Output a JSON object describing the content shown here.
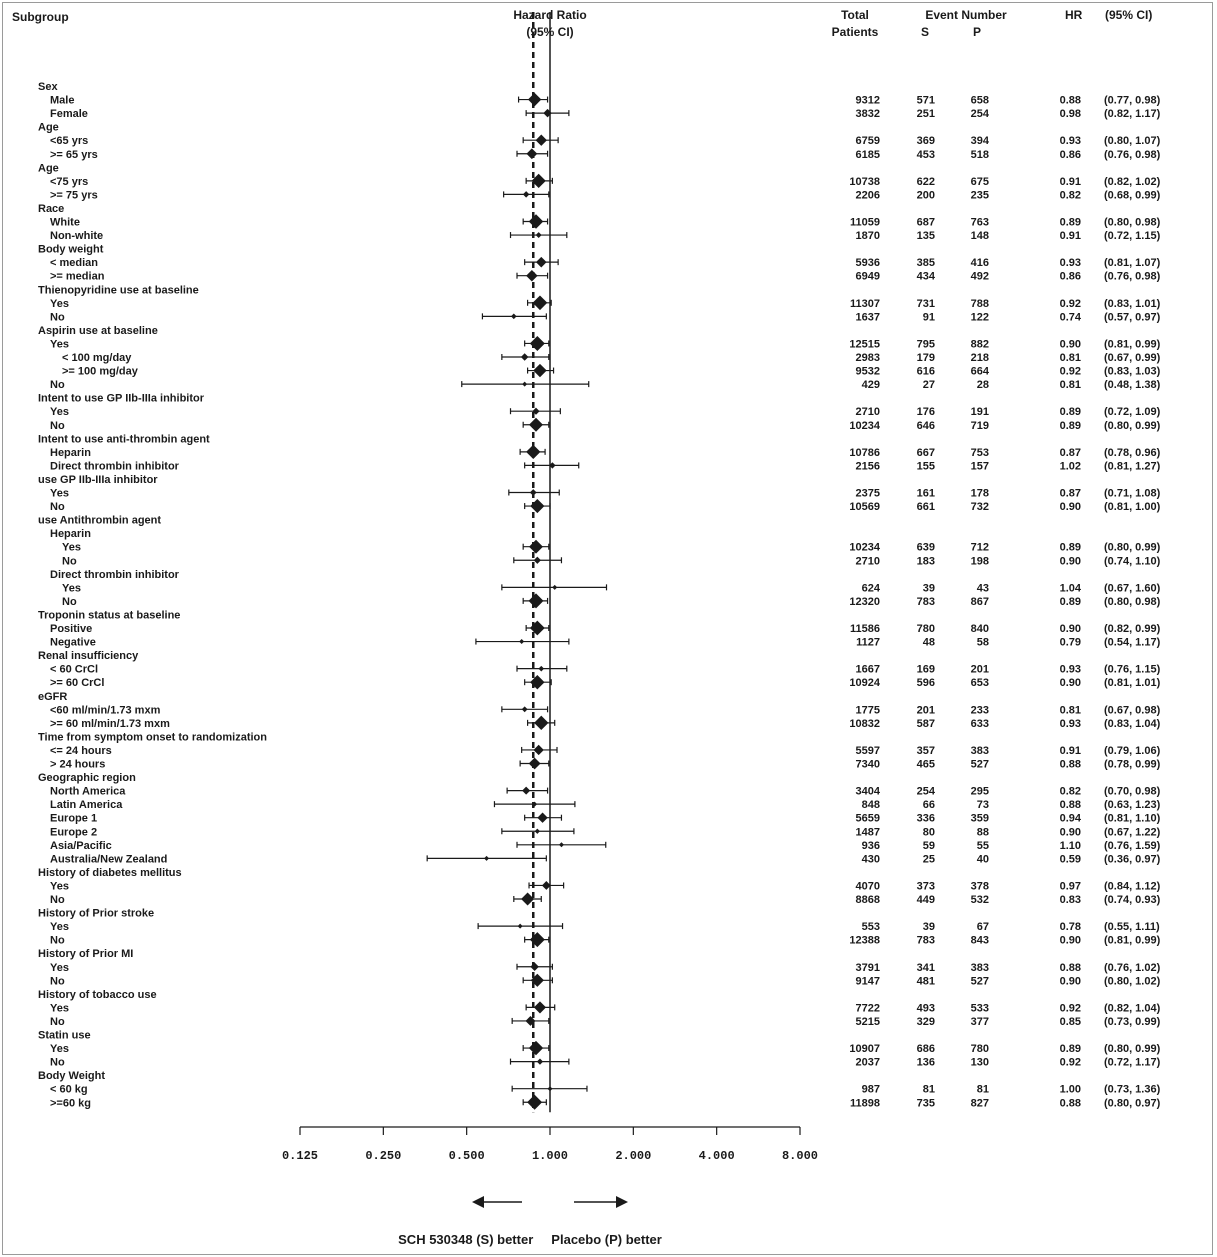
{
  "headers": {
    "subgroup": "Subgroup",
    "hr_title": "Hazard Ratio",
    "hr_ci": "(95% CI)",
    "total": "Total",
    "patients": "Patients",
    "event_number": "Event Number",
    "s": "S",
    "p": "P",
    "hr_col": "HR",
    "ci_col": "(95% CI)"
  },
  "footer": "SCH 530348 (S) better     Placebo (P) better",
  "chart_data": {
    "type": "forest",
    "xscale": "log2",
    "xlim": [
      0.125,
      8
    ],
    "ticks": [
      0.125,
      0.25,
      0.5,
      1,
      2,
      4,
      8
    ],
    "tick_labels": [
      "0.125",
      "0.250",
      "0.500",
      "1.000",
      "2.000",
      "4.000",
      "8.000"
    ],
    "reference_line": 1.0,
    "overall_line": 0.87,
    "rows": [
      {
        "label": "Sex",
        "level": 0
      },
      {
        "label": "Male",
        "level": 1,
        "total": "9312",
        "s": "571",
        "p": "658",
        "hr": 0.88,
        "lo": 0.77,
        "hi": 0.98,
        "hr_text": "0.88",
        "ci_text": "(0.77, 0.98)"
      },
      {
        "label": "Female",
        "level": 1,
        "total": "3832",
        "s": "251",
        "p": "254",
        "hr": 0.98,
        "lo": 0.82,
        "hi": 1.17,
        "hr_text": "0.98",
        "ci_text": "(0.82, 1.17)"
      },
      {
        "label": "Age",
        "level": 0
      },
      {
        "label": "<65 yrs",
        "level": 1,
        "total": "6759",
        "s": "369",
        "p": "394",
        "hr": 0.93,
        "lo": 0.8,
        "hi": 1.07,
        "hr_text": "0.93",
        "ci_text": "(0.80, 1.07)"
      },
      {
        "label": ">= 65 yrs",
        "level": 1,
        "total": "6185",
        "s": "453",
        "p": "518",
        "hr": 0.86,
        "lo": 0.76,
        "hi": 0.98,
        "hr_text": "0.86",
        "ci_text": "(0.76, 0.98)"
      },
      {
        "label": "Age",
        "level": 0
      },
      {
        "label": "<75 yrs",
        "level": 1,
        "total": "10738",
        "s": "622",
        "p": "675",
        "hr": 0.91,
        "lo": 0.82,
        "hi": 1.02,
        "hr_text": "0.91",
        "ci_text": "(0.82, 1.02)"
      },
      {
        "label": ">= 75 yrs",
        "level": 1,
        "total": "2206",
        "s": "200",
        "p": "235",
        "hr": 0.82,
        "lo": 0.68,
        "hi": 0.99,
        "hr_text": "0.82",
        "ci_text": "(0.68, 0.99)"
      },
      {
        "label": "Race",
        "level": 0
      },
      {
        "label": "White",
        "level": 1,
        "total": "11059",
        "s": "687",
        "p": "763",
        "hr": 0.89,
        "lo": 0.8,
        "hi": 0.98,
        "hr_text": "0.89",
        "ci_text": "(0.80, 0.98)"
      },
      {
        "label": "Non-white",
        "level": 1,
        "total": "1870",
        "s": "135",
        "p": "148",
        "hr": 0.91,
        "lo": 0.72,
        "hi": 1.15,
        "hr_text": "0.91",
        "ci_text": "(0.72, 1.15)"
      },
      {
        "label": "Body weight",
        "level": 0
      },
      {
        "label": "< median",
        "level": 1,
        "total": "5936",
        "s": "385",
        "p": "416",
        "hr": 0.93,
        "lo": 0.81,
        "hi": 1.07,
        "hr_text": "0.93",
        "ci_text": "(0.81, 1.07)"
      },
      {
        "label": ">= median",
        "level": 1,
        "total": "6949",
        "s": "434",
        "p": "492",
        "hr": 0.86,
        "lo": 0.76,
        "hi": 0.98,
        "hr_text": "0.86",
        "ci_text": "(0.76, 0.98)"
      },
      {
        "label": "Thienopyridine use at baseline",
        "level": 0
      },
      {
        "label": "Yes",
        "level": 1,
        "total": "11307",
        "s": "731",
        "p": "788",
        "hr": 0.92,
        "lo": 0.83,
        "hi": 1.01,
        "hr_text": "0.92",
        "ci_text": "(0.83, 1.01)"
      },
      {
        "label": "No",
        "level": 1,
        "total": "1637",
        "s": "91",
        "p": "122",
        "hr": 0.74,
        "lo": 0.57,
        "hi": 0.97,
        "hr_text": "0.74",
        "ci_text": "(0.57, 0.97)"
      },
      {
        "label": "Aspirin use at baseline",
        "level": 0
      },
      {
        "label": "Yes",
        "level": 1,
        "total": "12515",
        "s": "795",
        "p": "882",
        "hr": 0.9,
        "lo": 0.81,
        "hi": 0.99,
        "hr_text": "0.90",
        "ci_text": "(0.81, 0.99)"
      },
      {
        "label": "< 100 mg/day",
        "level": 2,
        "total": "2983",
        "s": "179",
        "p": "218",
        "hr": 0.81,
        "lo": 0.67,
        "hi": 0.99,
        "hr_text": "0.81",
        "ci_text": "(0.67, 0.99)"
      },
      {
        "label": ">= 100 mg/day",
        "level": 2,
        "total": "9532",
        "s": "616",
        "p": "664",
        "hr": 0.92,
        "lo": 0.83,
        "hi": 1.03,
        "hr_text": "0.92",
        "ci_text": "(0.83, 1.03)"
      },
      {
        "label": "No",
        "level": 1,
        "total": "429",
        "s": "27",
        "p": "28",
        "hr": 0.81,
        "lo": 0.48,
        "hi": 1.38,
        "hr_text": "0.81",
        "ci_text": "(0.48, 1.38)"
      },
      {
        "label": "Intent to use GP IIb-IIIa inhibitor",
        "level": 0
      },
      {
        "label": "Yes",
        "level": 1,
        "total": "2710",
        "s": "176",
        "p": "191",
        "hr": 0.89,
        "lo": 0.72,
        "hi": 1.09,
        "hr_text": "0.89",
        "ci_text": "(0.72, 1.09)"
      },
      {
        "label": "No",
        "level": 1,
        "total": "10234",
        "s": "646",
        "p": "719",
        "hr": 0.89,
        "lo": 0.8,
        "hi": 0.99,
        "hr_text": "0.89",
        "ci_text": "(0.80, 0.99)"
      },
      {
        "label": "Intent to use anti-thrombin agent",
        "level": 0
      },
      {
        "label": "Heparin",
        "level": 1,
        "total": "10786",
        "s": "667",
        "p": "753",
        "hr": 0.87,
        "lo": 0.78,
        "hi": 0.96,
        "hr_text": "0.87",
        "ci_text": "(0.78, 0.96)"
      },
      {
        "label": "Direct thrombin inhibitor",
        "level": 1,
        "total": "2156",
        "s": "155",
        "p": "157",
        "hr": 1.02,
        "lo": 0.81,
        "hi": 1.27,
        "hr_text": "1.02",
        "ci_text": "(0.81, 1.27)"
      },
      {
        "label": "use GP IIb-IIIa inhibitor",
        "level": 0
      },
      {
        "label": "Yes",
        "level": 1,
        "total": "2375",
        "s": "161",
        "p": "178",
        "hr": 0.87,
        "lo": 0.71,
        "hi": 1.08,
        "hr_text": "0.87",
        "ci_text": "(0.71, 1.08)"
      },
      {
        "label": "No",
        "level": 1,
        "total": "10569",
        "s": "661",
        "p": "732",
        "hr": 0.9,
        "lo": 0.81,
        "hi": 1.0,
        "hr_text": "0.90",
        "ci_text": "(0.81, 1.00)"
      },
      {
        "label": "use Antithrombin agent",
        "level": 0
      },
      {
        "label": "Heparin",
        "level": 1
      },
      {
        "label": "Yes",
        "level": 2,
        "total": "10234",
        "s": "639",
        "p": "712",
        "hr": 0.89,
        "lo": 0.8,
        "hi": 0.99,
        "hr_text": "0.89",
        "ci_text": "(0.80, 0.99)"
      },
      {
        "label": "No",
        "level": 2,
        "total": "2710",
        "s": "183",
        "p": "198",
        "hr": 0.9,
        "lo": 0.74,
        "hi": 1.1,
        "hr_text": "0.90",
        "ci_text": "(0.74, 1.10)"
      },
      {
        "label": "Direct thrombin inhibitor",
        "level": 1
      },
      {
        "label": "Yes",
        "level": 2,
        "total": "624",
        "s": "39",
        "p": "43",
        "hr": 1.04,
        "lo": 0.67,
        "hi": 1.6,
        "hr_text": "1.04",
        "ci_text": "(0.67, 1.60)"
      },
      {
        "label": "No",
        "level": 2,
        "total": "12320",
        "s": "783",
        "p": "867",
        "hr": 0.89,
        "lo": 0.8,
        "hi": 0.98,
        "hr_text": "0.89",
        "ci_text": "(0.80, 0.98)"
      },
      {
        "label": "Troponin status at baseline",
        "level": 0
      },
      {
        "label": "Positive",
        "level": 1,
        "total": "11586",
        "s": "780",
        "p": "840",
        "hr": 0.9,
        "lo": 0.82,
        "hi": 0.99,
        "hr_text": "0.90",
        "ci_text": "(0.82, 0.99)"
      },
      {
        "label": "Negative",
        "level": 1,
        "total": "1127",
        "s": "48",
        "p": "58",
        "hr": 0.79,
        "lo": 0.54,
        "hi": 1.17,
        "hr_text": "0.79",
        "ci_text": "(0.54, 1.17)"
      },
      {
        "label": "Renal insufficiency",
        "level": 0
      },
      {
        "label": "< 60 CrCl",
        "level": 1,
        "total": "1667",
        "s": "169",
        "p": "201",
        "hr": 0.93,
        "lo": 0.76,
        "hi": 1.15,
        "hr_text": "0.93",
        "ci_text": "(0.76, 1.15)"
      },
      {
        "label": ">= 60 CrCl",
        "level": 1,
        "total": "10924",
        "s": "596",
        "p": "653",
        "hr": 0.9,
        "lo": 0.81,
        "hi": 1.01,
        "hr_text": "0.90",
        "ci_text": "(0.81, 1.01)"
      },
      {
        "label": "eGFR",
        "level": 0
      },
      {
        "label": "<60 ml/min/1.73 mxm",
        "level": 1,
        "total": "1775",
        "s": "201",
        "p": "233",
        "hr": 0.81,
        "lo": 0.67,
        "hi": 0.98,
        "hr_text": "0.81",
        "ci_text": "(0.67, 0.98)"
      },
      {
        "label": ">= 60 ml/min/1.73 mxm",
        "level": 1,
        "total": "10832",
        "s": "587",
        "p": "633",
        "hr": 0.93,
        "lo": 0.83,
        "hi": 1.04,
        "hr_text": "0.93",
        "ci_text": "(0.83, 1.04)"
      },
      {
        "label": "Time from symptom onset to randomization",
        "level": 0
      },
      {
        "label": "<= 24 hours",
        "level": 1,
        "total": "5597",
        "s": "357",
        "p": "383",
        "hr": 0.91,
        "lo": 0.79,
        "hi": 1.06,
        "hr_text": "0.91",
        "ci_text": "(0.79, 1.06)"
      },
      {
        "label": "> 24 hours",
        "level": 1,
        "total": "7340",
        "s": "465",
        "p": "527",
        "hr": 0.88,
        "lo": 0.78,
        "hi": 0.99,
        "hr_text": "0.88",
        "ci_text": "(0.78, 0.99)"
      },
      {
        "label": "Geographic region",
        "level": 0
      },
      {
        "label": "North America",
        "level": 1,
        "total": "3404",
        "s": "254",
        "p": "295",
        "hr": 0.82,
        "lo": 0.7,
        "hi": 0.98,
        "hr_text": "0.82",
        "ci_text": "(0.70, 0.98)"
      },
      {
        "label": "Latin America",
        "level": 1,
        "total": "848",
        "s": "66",
        "p": "73",
        "hr": 0.88,
        "lo": 0.63,
        "hi": 1.23,
        "hr_text": "0.88",
        "ci_text": "(0.63, 1.23)"
      },
      {
        "label": "Europe 1",
        "level": 1,
        "total": "5659",
        "s": "336",
        "p": "359",
        "hr": 0.94,
        "lo": 0.81,
        "hi": 1.1,
        "hr_text": "0.94",
        "ci_text": "(0.81, 1.10)"
      },
      {
        "label": "Europe 2",
        "level": 1,
        "total": "1487",
        "s": "80",
        "p": "88",
        "hr": 0.9,
        "lo": 0.67,
        "hi": 1.22,
        "hr_text": "0.90",
        "ci_text": "(0.67, 1.22)"
      },
      {
        "label": "Asia/Pacific",
        "level": 1,
        "total": "936",
        "s": "59",
        "p": "55",
        "hr": 1.1,
        "lo": 0.76,
        "hi": 1.59,
        "hr_text": "1.10",
        "ci_text": "(0.76, 1.59)"
      },
      {
        "label": "Australia/New Zealand",
        "level": 1,
        "total": "430",
        "s": "25",
        "p": "40",
        "hr": 0.59,
        "lo": 0.36,
        "hi": 0.97,
        "hr_text": "0.59",
        "ci_text": "(0.36, 0.97)"
      },
      {
        "label": "History of diabetes mellitus",
        "level": 0
      },
      {
        "label": "Yes",
        "level": 1,
        "total": "4070",
        "s": "373",
        "p": "378",
        "hr": 0.97,
        "lo": 0.84,
        "hi": 1.12,
        "hr_text": "0.97",
        "ci_text": "(0.84, 1.12)"
      },
      {
        "label": "No",
        "level": 1,
        "total": "8868",
        "s": "449",
        "p": "532",
        "hr": 0.83,
        "lo": 0.74,
        "hi": 0.93,
        "hr_text": "0.83",
        "ci_text": "(0.74, 0.93)"
      },
      {
        "label": "History of Prior stroke",
        "level": 0
      },
      {
        "label": "Yes",
        "level": 1,
        "total": "553",
        "s": "39",
        "p": "67",
        "hr": 0.78,
        "lo": 0.55,
        "hi": 1.11,
        "hr_text": "0.78",
        "ci_text": "(0.55, 1.11)"
      },
      {
        "label": "No",
        "level": 1,
        "total": "12388",
        "s": "783",
        "p": "843",
        "hr": 0.9,
        "lo": 0.81,
        "hi": 0.99,
        "hr_text": "0.90",
        "ci_text": "(0.81, 0.99)"
      },
      {
        "label": "History of Prior MI",
        "level": 0
      },
      {
        "label": "Yes",
        "level": 1,
        "total": "3791",
        "s": "341",
        "p": "383",
        "hr": 0.88,
        "lo": 0.76,
        "hi": 1.02,
        "hr_text": "0.88",
        "ci_text": "(0.76, 1.02)"
      },
      {
        "label": "No",
        "level": 1,
        "total": "9147",
        "s": "481",
        "p": "527",
        "hr": 0.9,
        "lo": 0.8,
        "hi": 1.02,
        "hr_text": "0.90",
        "ci_text": "(0.80, 1.02)"
      },
      {
        "label": "History of tobacco use",
        "level": 0
      },
      {
        "label": "Yes",
        "level": 1,
        "total": "7722",
        "s": "493",
        "p": "533",
        "hr": 0.92,
        "lo": 0.82,
        "hi": 1.04,
        "hr_text": "0.92",
        "ci_text": "(0.82, 1.04)"
      },
      {
        "label": "No",
        "level": 1,
        "total": "5215",
        "s": "329",
        "p": "377",
        "hr": 0.85,
        "lo": 0.73,
        "hi": 0.99,
        "hr_text": "0.85",
        "ci_text": "(0.73, 0.99)"
      },
      {
        "label": "Statin use",
        "level": 0
      },
      {
        "label": "Yes",
        "level": 1,
        "total": "10907",
        "s": "686",
        "p": "780",
        "hr": 0.89,
        "lo": 0.8,
        "hi": 0.99,
        "hr_text": "0.89",
        "ci_text": "(0.80, 0.99)"
      },
      {
        "label": "No",
        "level": 1,
        "total": "2037",
        "s": "136",
        "p": "130",
        "hr": 0.92,
        "lo": 0.72,
        "hi": 1.17,
        "hr_text": "0.92",
        "ci_text": "(0.72, 1.17)"
      },
      {
        "label": "Body Weight",
        "level": 0
      },
      {
        "label": "< 60 kg",
        "level": 1,
        "total": "987",
        "s": "81",
        "p": "81",
        "hr": 1.0,
        "lo": 0.73,
        "hi": 1.36,
        "hr_text": "1.00",
        "ci_text": "(0.73, 1.36)"
      },
      {
        "label": ">=60 kg",
        "level": 1,
        "total": "11898",
        "s": "735",
        "p": "827",
        "hr": 0.88,
        "lo": 0.8,
        "hi": 0.97,
        "hr_text": "0.88",
        "ci_text": "(0.80, 0.97)"
      }
    ]
  }
}
